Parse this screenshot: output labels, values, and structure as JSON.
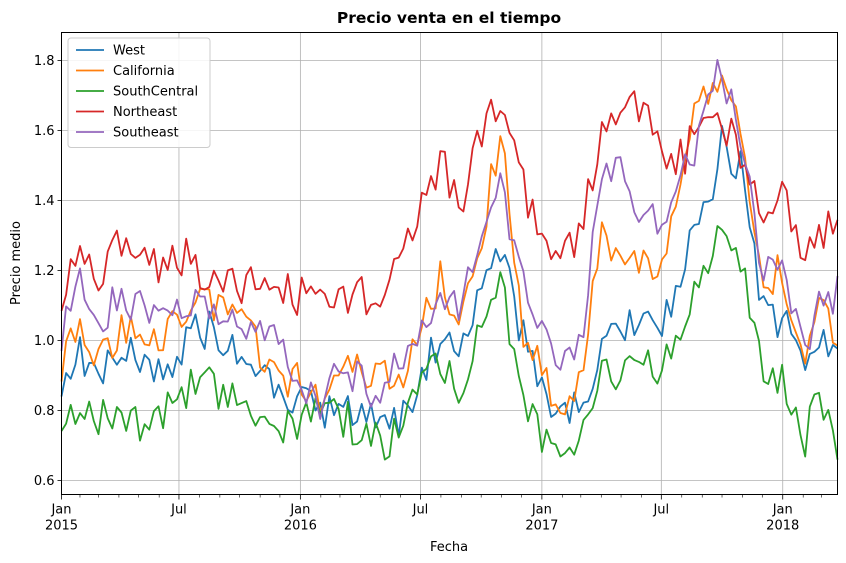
{
  "chart_data": {
    "type": "line",
    "title": "Precio venta en el tiempo",
    "xlabel": "Fecha",
    "ylabel": "Precio medio",
    "ylim": [
      0.56,
      1.88
    ],
    "xlim": [
      "2015-01-04",
      "2018-03-25"
    ],
    "grid": true,
    "legend_position": "top-left",
    "yticks": [
      "0.6",
      "0.8",
      "1.0",
      "1.2",
      "1.4",
      "1.6",
      "1.8"
    ],
    "xticks": [
      {
        "date": "2015-01-04",
        "label": "Jan",
        "year": "2015"
      },
      {
        "date": "2015-07-01",
        "label": "Jul",
        "year": ""
      },
      {
        "date": "2016-01-01",
        "label": "Jan",
        "year": "2016"
      },
      {
        "date": "2016-07-01",
        "label": "Jul",
        "year": ""
      },
      {
        "date": "2017-01-01",
        "label": "Jan",
        "year": "2017"
      },
      {
        "date": "2017-07-01",
        "label": "Jul",
        "year": ""
      },
      {
        "date": "2018-01-01",
        "label": "Jan",
        "year": "2018"
      }
    ],
    "minor_ticks": [
      "2015-02-01",
      "2015-03-01",
      "2015-04-01",
      "2015-05-01",
      "2015-06-01",
      "2015-08-01",
      "2015-09-01",
      "2015-10-01",
      "2015-11-01",
      "2015-12-01",
      "2016-02-01",
      "2016-03-01",
      "2016-04-01",
      "2016-05-01",
      "2016-06-01",
      "2016-08-01",
      "2016-09-01",
      "2016-10-01",
      "2016-11-01",
      "2016-12-01",
      "2017-02-01",
      "2017-03-01",
      "2017-04-01",
      "2017-05-01",
      "2017-06-01",
      "2017-08-01",
      "2017-09-01",
      "2017-10-01",
      "2017-11-01",
      "2017-12-01",
      "2018-02-01",
      "2018-03-01"
    ],
    "series": [
      {
        "name": "West",
        "color": "#1f77b4",
        "points": [
          [
            "2015-01-04",
            0.9
          ],
          [
            "2015-02-01",
            0.96
          ],
          [
            "2015-03-01",
            0.9
          ],
          [
            "2015-04-01",
            0.97
          ],
          [
            "2015-05-01",
            0.94
          ],
          [
            "2015-06-01",
            0.91
          ],
          [
            "2015-07-01",
            0.96
          ],
          [
            "2015-08-01",
            1.04
          ],
          [
            "2015-09-01",
            1.01
          ],
          [
            "2015-10-01",
            0.95
          ],
          [
            "2015-11-01",
            0.9
          ],
          [
            "2015-12-01",
            0.85
          ],
          [
            "2016-01-01",
            0.81
          ],
          [
            "2016-02-01",
            0.8
          ],
          [
            "2016-03-01",
            0.8
          ],
          [
            "2016-04-01",
            0.79
          ],
          [
            "2016-05-01",
            0.78
          ],
          [
            "2016-06-01",
            0.78
          ],
          [
            "2016-07-01",
            0.88
          ],
          [
            "2016-08-01",
            1.02
          ],
          [
            "2016-09-01",
            0.98
          ],
          [
            "2016-10-01",
            1.12
          ],
          [
            "2016-11-01",
            1.24
          ],
          [
            "2016-12-01",
            1.02
          ],
          [
            "2017-01-01",
            0.85
          ],
          [
            "2017-02-01",
            0.8
          ],
          [
            "2017-03-01",
            0.82
          ],
          [
            "2017-04-01",
            0.98
          ],
          [
            "2017-05-01",
            1.01
          ],
          [
            "2017-06-01",
            1.05
          ],
          [
            "2017-07-01",
            1.02
          ],
          [
            "2017-08-01",
            1.2
          ],
          [
            "2017-09-01",
            1.35
          ],
          [
            "2017-10-01",
            1.56
          ],
          [
            "2017-11-01",
            1.5
          ],
          [
            "2017-12-01",
            1.1
          ],
          [
            "2018-01-01",
            1.05
          ],
          [
            "2018-02-01",
            0.96
          ],
          [
            "2018-03-01",
            0.98
          ],
          [
            "2018-03-25",
            0.93
          ]
        ]
      },
      {
        "name": "California",
        "color": "#ff7f0e",
        "points": [
          [
            "2015-01-04",
            0.94
          ],
          [
            "2015-02-01",
            1.03
          ],
          [
            "2015-03-01",
            0.93
          ],
          [
            "2015-04-01",
            1.02
          ],
          [
            "2015-05-01",
            1.06
          ],
          [
            "2015-06-01",
            1.0
          ],
          [
            "2015-07-01",
            1.08
          ],
          [
            "2015-08-01",
            1.13
          ],
          [
            "2015-09-01",
            1.11
          ],
          [
            "2015-10-01",
            1.05
          ],
          [
            "2015-11-01",
            0.98
          ],
          [
            "2015-12-01",
            0.91
          ],
          [
            "2016-01-01",
            0.87
          ],
          [
            "2016-02-01",
            0.85
          ],
          [
            "2016-03-01",
            0.94
          ],
          [
            "2016-04-01",
            0.92
          ],
          [
            "2016-05-01",
            0.9
          ],
          [
            "2016-06-01",
            0.89
          ],
          [
            "2016-07-01",
            1.05
          ],
          [
            "2016-08-01",
            1.18
          ],
          [
            "2016-09-01",
            1.05
          ],
          [
            "2016-10-01",
            1.3
          ],
          [
            "2016-11-01",
            1.62
          ],
          [
            "2016-12-01",
            1.05
          ],
          [
            "2017-01-01",
            0.9
          ],
          [
            "2017-02-01",
            0.82
          ],
          [
            "2017-03-01",
            0.88
          ],
          [
            "2017-04-01",
            1.28
          ],
          [
            "2017-05-01",
            1.25
          ],
          [
            "2017-06-01",
            1.2
          ],
          [
            "2017-07-01",
            1.18
          ],
          [
            "2017-08-01",
            1.52
          ],
          [
            "2017-09-01",
            1.68
          ],
          [
            "2017-10-01",
            1.73
          ],
          [
            "2017-11-01",
            1.6
          ],
          [
            "2017-12-01",
            1.2
          ],
          [
            "2018-01-01",
            1.18
          ],
          [
            "2018-02-01",
            0.9
          ],
          [
            "2018-03-01",
            1.1
          ],
          [
            "2018-03-25",
            1.03
          ]
        ]
      },
      {
        "name": "SouthCentral",
        "color": "#2ca02c",
        "points": [
          [
            "2015-01-04",
            0.77
          ],
          [
            "2015-02-01",
            0.8
          ],
          [
            "2015-03-01",
            0.76
          ],
          [
            "2015-04-01",
            0.82
          ],
          [
            "2015-05-01",
            0.77
          ],
          [
            "2015-06-01",
            0.8
          ],
          [
            "2015-07-01",
            0.83
          ],
          [
            "2015-08-01",
            0.88
          ],
          [
            "2015-09-01",
            0.86
          ],
          [
            "2015-10-01",
            0.82
          ],
          [
            "2015-11-01",
            0.8
          ],
          [
            "2015-12-01",
            0.77
          ],
          [
            "2016-01-01",
            0.76
          ],
          [
            "2016-02-01",
            0.8
          ],
          [
            "2016-03-01",
            0.78
          ],
          [
            "2016-04-01",
            0.75
          ],
          [
            "2016-05-01",
            0.71
          ],
          [
            "2016-06-01",
            0.74
          ],
          [
            "2016-07-01",
            0.88
          ],
          [
            "2016-08-01",
            0.93
          ],
          [
            "2016-09-01",
            0.85
          ],
          [
            "2016-10-01",
            1.02
          ],
          [
            "2016-11-01",
            1.17
          ],
          [
            "2016-12-01",
            0.85
          ],
          [
            "2017-01-01",
            0.72
          ],
          [
            "2017-02-01",
            0.66
          ],
          [
            "2017-03-01",
            0.7
          ],
          [
            "2017-04-01",
            0.9
          ],
          [
            "2017-05-01",
            0.88
          ],
          [
            "2017-06-01",
            0.92
          ],
          [
            "2017-07-01",
            0.91
          ],
          [
            "2017-08-01",
            1.05
          ],
          [
            "2017-09-01",
            1.18
          ],
          [
            "2017-10-01",
            1.33
          ],
          [
            "2017-11-01",
            1.2
          ],
          [
            "2017-12-01",
            0.92
          ],
          [
            "2018-01-01",
            0.88
          ],
          [
            "2018-02-01",
            0.7
          ],
          [
            "2018-03-01",
            0.85
          ],
          [
            "2018-03-25",
            0.7
          ]
        ]
      },
      {
        "name": "Northeast",
        "color": "#d62728",
        "points": [
          [
            "2015-01-04",
            1.13
          ],
          [
            "2015-02-01",
            1.31
          ],
          [
            "2015-03-01",
            1.12
          ],
          [
            "2015-04-01",
            1.3
          ],
          [
            "2015-05-01",
            1.29
          ],
          [
            "2015-06-01",
            1.22
          ],
          [
            "2015-07-01",
            1.25
          ],
          [
            "2015-08-01",
            1.2
          ],
          [
            "2015-09-01",
            1.18
          ],
          [
            "2015-10-01",
            1.16
          ],
          [
            "2015-11-01",
            1.15
          ],
          [
            "2015-12-01",
            1.17
          ],
          [
            "2016-01-01",
            1.12
          ],
          [
            "2016-02-01",
            1.15
          ],
          [
            "2016-03-01",
            1.12
          ],
          [
            "2016-04-01",
            1.15
          ],
          [
            "2016-05-01",
            1.05
          ],
          [
            "2016-06-01",
            1.25
          ],
          [
            "2016-07-01",
            1.4
          ],
          [
            "2016-08-01",
            1.5
          ],
          [
            "2016-09-01",
            1.4
          ],
          [
            "2016-10-01",
            1.58
          ],
          [
            "2016-11-01",
            1.7
          ],
          [
            "2016-12-01",
            1.45
          ],
          [
            "2017-01-01",
            1.3
          ],
          [
            "2017-02-01",
            1.25
          ],
          [
            "2017-03-01",
            1.3
          ],
          [
            "2017-04-01",
            1.6
          ],
          [
            "2017-05-01",
            1.65
          ],
          [
            "2017-06-01",
            1.68
          ],
          [
            "2017-07-01",
            1.55
          ],
          [
            "2017-08-01",
            1.52
          ],
          [
            "2017-09-01",
            1.62
          ],
          [
            "2017-10-01",
            1.63
          ],
          [
            "2017-11-01",
            1.52
          ],
          [
            "2017-12-01",
            1.35
          ],
          [
            "2018-01-01",
            1.45
          ],
          [
            "2018-02-01",
            1.25
          ],
          [
            "2018-03-01",
            1.28
          ],
          [
            "2018-03-25",
            1.35
          ]
        ]
      },
      {
        "name": "Southeast",
        "color": "#9467bd",
        "points": [
          [
            "2015-01-04",
            1.0
          ],
          [
            "2015-02-01",
            1.16
          ],
          [
            "2015-03-01",
            1.05
          ],
          [
            "2015-04-01",
            1.14
          ],
          [
            "2015-05-01",
            1.1
          ],
          [
            "2015-06-01",
            1.06
          ],
          [
            "2015-07-01",
            1.08
          ],
          [
            "2015-08-01",
            1.1
          ],
          [
            "2015-09-01",
            1.06
          ],
          [
            "2015-10-01",
            1.02
          ],
          [
            "2015-11-01",
            1.03
          ],
          [
            "2015-12-01",
            1.0
          ],
          [
            "2016-01-01",
            0.9
          ],
          [
            "2016-02-01",
            0.82
          ],
          [
            "2016-03-01",
            0.92
          ],
          [
            "2016-04-01",
            0.88
          ],
          [
            "2016-05-01",
            0.85
          ],
          [
            "2016-06-01",
            0.95
          ],
          [
            "2016-07-01",
            1.05
          ],
          [
            "2016-08-01",
            1.15
          ],
          [
            "2016-09-01",
            1.1
          ],
          [
            "2016-10-01",
            1.3
          ],
          [
            "2016-11-01",
            1.43
          ],
          [
            "2016-12-01",
            1.2
          ],
          [
            "2017-01-01",
            1.02
          ],
          [
            "2017-02-01",
            0.92
          ],
          [
            "2017-03-01",
            1.0
          ],
          [
            "2017-04-01",
            1.45
          ],
          [
            "2017-05-01",
            1.48
          ],
          [
            "2017-06-01",
            1.38
          ],
          [
            "2017-07-01",
            1.35
          ],
          [
            "2017-08-01",
            1.45
          ],
          [
            "2017-09-01",
            1.62
          ],
          [
            "2017-10-01",
            1.78
          ],
          [
            "2017-11-01",
            1.55
          ],
          [
            "2017-12-01",
            1.2
          ],
          [
            "2018-01-01",
            1.18
          ],
          [
            "2018-02-01",
            0.98
          ],
          [
            "2018-03-01",
            1.1
          ],
          [
            "2018-03-25",
            1.15
          ]
        ]
      }
    ]
  }
}
